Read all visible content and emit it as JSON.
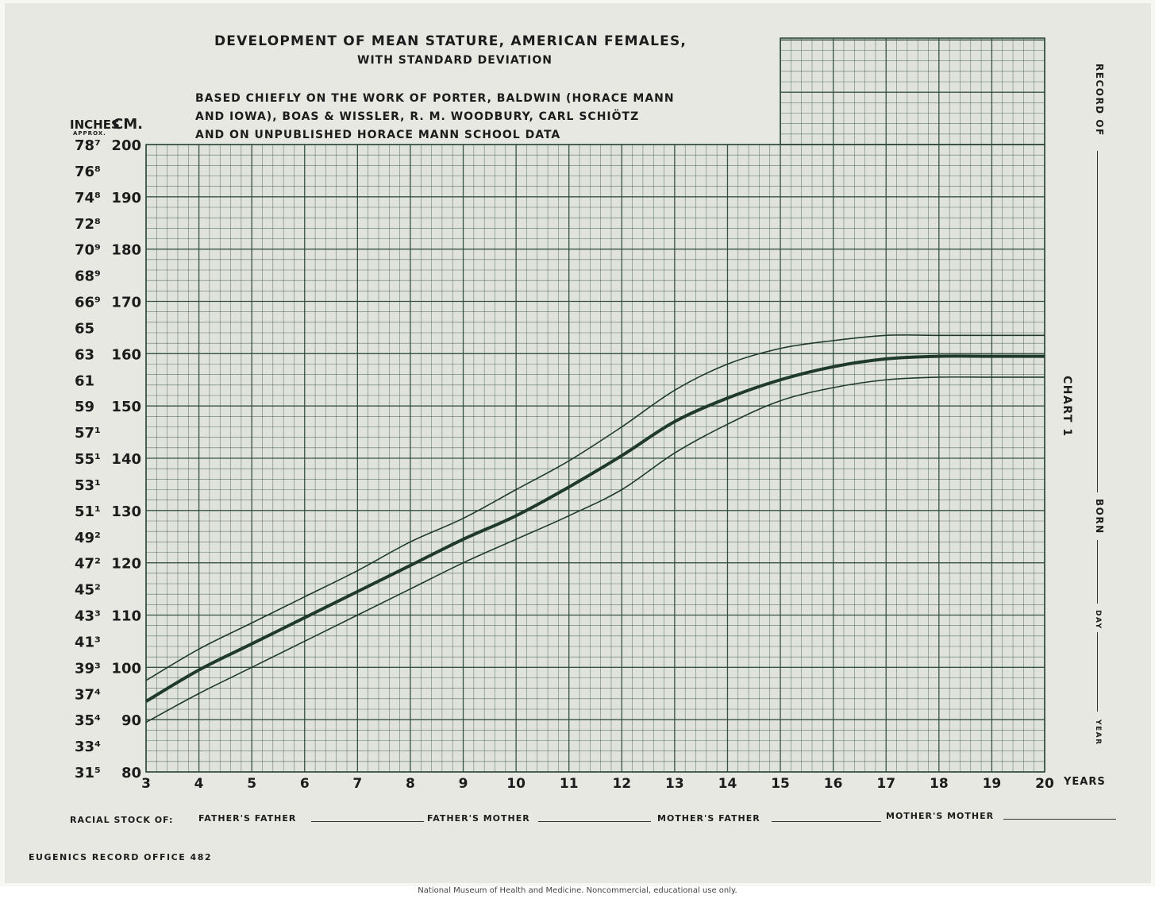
{
  "title": "Development of Mean Stature, American Females,",
  "subtitle": "with Standard Deviation",
  "source_lines": [
    "Based chiefly on the work of Porter, Baldwin (Horace Mann",
    "and Iowa), Boas & Wissler, R. M. Woodbury, Carl Schiötz",
    "and on unpublished Horace Mann School Data"
  ],
  "y_units": {
    "inches": "INCHES",
    "approx": "APPROX.",
    "cm": "CM."
  },
  "x_unit": "YEARS",
  "cm_ticks": [
    "200",
    "190",
    "180",
    "170",
    "160",
    "150",
    "140",
    "130",
    "120",
    "110",
    "100",
    "90",
    "80"
  ],
  "inch_ticks": [
    "78⁷",
    "76⁸",
    "74⁸",
    "72⁸",
    "70⁹",
    "68⁹",
    "66⁹",
    "65",
    "63",
    "61",
    "59",
    "57¹",
    "55¹",
    "53¹",
    "51¹",
    "49²",
    "47²",
    "45²",
    "43³",
    "41³",
    "39³",
    "37⁴",
    "35⁴",
    "33⁴",
    "31⁵"
  ],
  "x_ticks": [
    "3",
    "4",
    "5",
    "6",
    "7",
    "8",
    "9",
    "10",
    "11",
    "12",
    "13",
    "14",
    "15",
    "16",
    "17",
    "18",
    "19",
    "20"
  ],
  "right_margin": {
    "record_of": "RECORD OF",
    "chart_label": "CHART 1",
    "born": "BORN",
    "day": "DAY",
    "year": "YEAR"
  },
  "footer": {
    "racial_stock": "RACIAL STOCK OF:",
    "fathers_father": "FATHER'S FATHER",
    "fathers_mother": "FATHER'S MOTHER",
    "mothers_father": "MOTHER'S FATHER",
    "mothers_mother": "MOTHER'S MOTHER",
    "office": "EUGENICS RECORD OFFICE 482"
  },
  "caption": "National Museum of Health and Medicine. Noncommercial, educational use only.",
  "colors": {
    "grid": "#2f4a3a",
    "curve": "#1f3a2a",
    "paper": "#e8e8e2"
  },
  "chart_data": {
    "type": "line",
    "title": "Development of Mean Stature, American Females, with Standard Deviation",
    "xlabel": "YEARS",
    "ylabel": "CM.",
    "xlim": [
      3,
      20
    ],
    "ylim": [
      80,
      200
    ],
    "grid": true,
    "x": [
      3,
      4,
      5,
      6,
      7,
      8,
      9,
      10,
      11,
      12,
      13,
      14,
      15,
      16,
      17,
      18,
      19,
      20
    ],
    "series": [
      {
        "values": [
          93.5,
          99.5,
          104.5,
          109.5,
          114.5,
          119.5,
          124.5,
          129.0,
          134.5,
          140.5,
          147.0,
          151.5,
          155.0,
          157.5,
          159.0,
          159.5,
          159.5,
          159.5
        ]
      },
      {
        "values": [
          97.5,
          103.5,
          108.5,
          113.5,
          118.5,
          124.0,
          128.5,
          134.0,
          139.5,
          146.0,
          153.0,
          158.0,
          161.0,
          162.5,
          163.5,
          163.5,
          163.5,
          163.5
        ]
      },
      {
        "values": [
          89.5,
          95.0,
          100.0,
          105.0,
          110.0,
          115.0,
          120.0,
          124.5,
          129.0,
          134.0,
          141.0,
          146.5,
          151.0,
          153.5,
          155.0,
          155.5,
          155.5,
          155.5
        ]
      }
    ]
  }
}
